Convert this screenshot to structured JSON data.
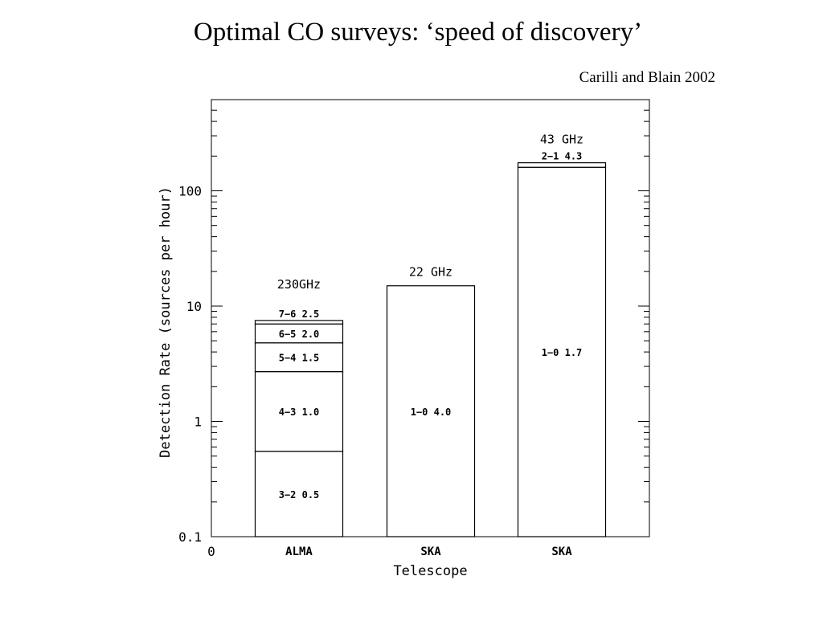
{
  "title": "Optimal CO surveys: ‘speed of discovery’",
  "citation": "Carilli and Blain 2002",
  "chart_data": {
    "type": "bar",
    "stacked": true,
    "x_tick_origin": "0",
    "xlabel": "Telescope",
    "ylabel": "Detection Rate (sources per hour)",
    "yscale": "log",
    "ylim": [
      0.1,
      500
    ],
    "y_ticks": [
      {
        "value": 0.1,
        "label": "0.1"
      },
      {
        "value": 1,
        "label": "1"
      },
      {
        "value": 10,
        "label": "10"
      },
      {
        "value": 100,
        "label": "100"
      }
    ],
    "bars": [
      {
        "category": "ALMA",
        "header": "230GHz",
        "segments": [
          {
            "label": "3−2 0.5",
            "bottom": 0.1,
            "top": 0.55
          },
          {
            "label": "4−3 1.0",
            "bottom": 0.55,
            "top": 2.7
          },
          {
            "label": "5−4 1.5",
            "bottom": 2.7,
            "top": 4.8
          },
          {
            "label": "6−5 2.0",
            "bottom": 4.8,
            "top": 7.0
          },
          {
            "label": "7−6 2.5",
            "bottom": 7.0,
            "top": 7.5
          }
        ]
      },
      {
        "category": "SKA",
        "header": "22 GHz",
        "segments": [
          {
            "label": "1−0 4.0",
            "bottom": 0.1,
            "top": 15
          }
        ]
      },
      {
        "category": "SKA",
        "header": "43 GHz",
        "segments": [
          {
            "label": "1−0 1.7",
            "bottom": 0.1,
            "top": 160
          },
          {
            "label": "2−1 4.3",
            "bottom": 160,
            "top": 175
          }
        ]
      }
    ]
  }
}
